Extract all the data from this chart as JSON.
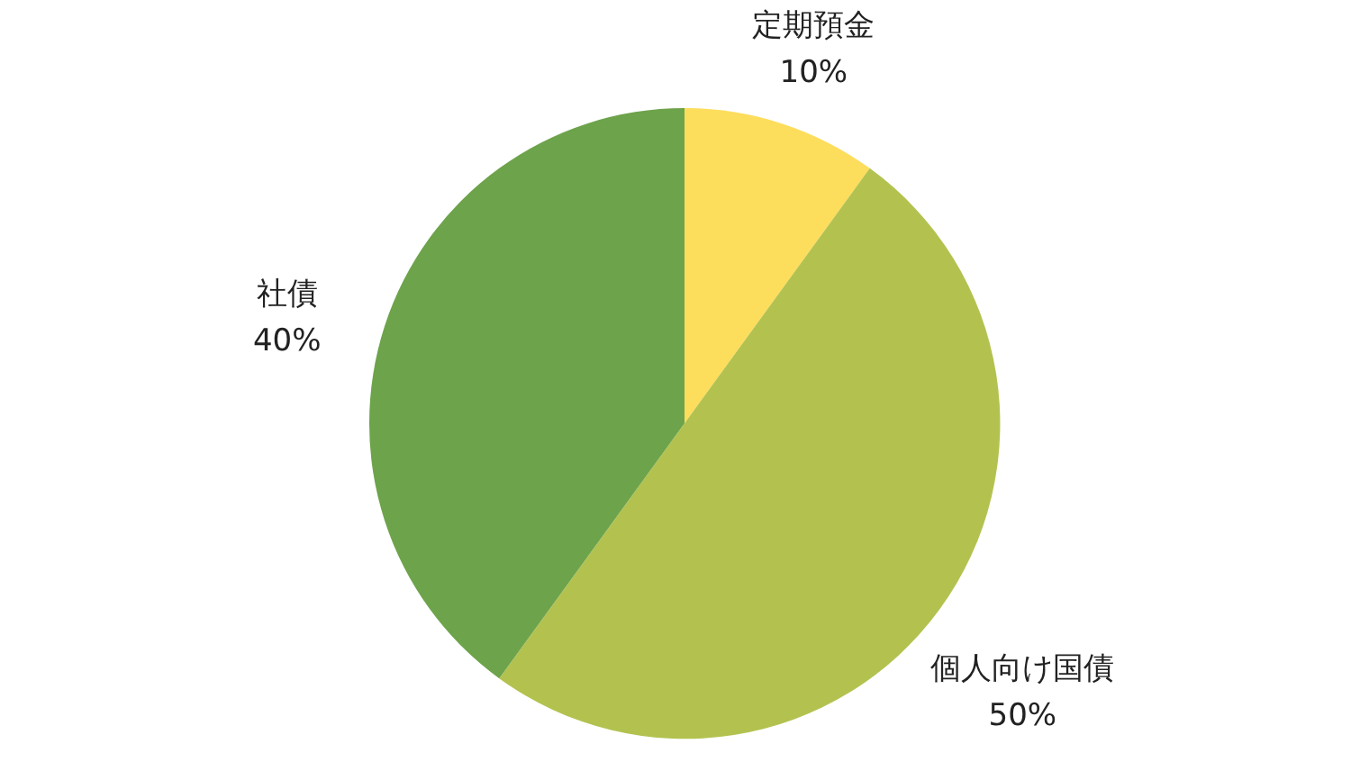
{
  "chart_data": {
    "type": "pie",
    "categories": [
      "定期預金",
      "個人向け国債",
      "社債"
    ],
    "values": [
      10,
      50,
      40
    ],
    "value_labels": [
      "10%",
      "50%",
      "40%"
    ],
    "colors": [
      "#fddd5c",
      "#b3c24f",
      "#6da34b"
    ],
    "legend": false
  }
}
